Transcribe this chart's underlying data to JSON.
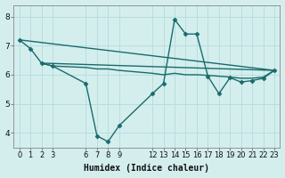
{
  "xlabel": "Humidex (Indice chaleur)",
  "bg_color": "#d4eeee",
  "line_color": "#1a6b6b",
  "grid_color": "#b8dede",
  "xticks": [
    0,
    1,
    2,
    3,
    6,
    7,
    8,
    9,
    12,
    13,
    14,
    15,
    16,
    17,
    18,
    19,
    20,
    21,
    22,
    23
  ],
  "yticks": [
    4,
    5,
    6,
    7,
    8
  ],
  "ylim": [
    3.5,
    8.4
  ],
  "xlim": [
    -0.5,
    23.5
  ],
  "series": [
    {
      "x": [
        0,
        23
      ],
      "y": [
        7.2,
        6.15
      ],
      "marker": null,
      "linewidth": 1.0
    },
    {
      "x": [
        2,
        23
      ],
      "y": [
        6.4,
        6.15
      ],
      "marker": null,
      "linewidth": 1.0
    },
    {
      "x": [
        2,
        3,
        6,
        7,
        8,
        9,
        12,
        13,
        14,
        15,
        16,
        17,
        18,
        19,
        20,
        21,
        22,
        23
      ],
      "y": [
        6.4,
        6.3,
        6.25,
        6.2,
        6.2,
        6.15,
        6.05,
        6.0,
        6.05,
        6.0,
        6.0,
        5.98,
        5.95,
        5.92,
        5.88,
        5.88,
        5.92,
        6.15
      ],
      "marker": null,
      "linewidth": 1.0
    },
    {
      "x": [
        0,
        1,
        2,
        3,
        6,
        7,
        8,
        9,
        12,
        13,
        14,
        15,
        16,
        17,
        18,
        19,
        20,
        21,
        22,
        23
      ],
      "y": [
        7.2,
        6.9,
        6.4,
        6.3,
        5.7,
        3.9,
        3.7,
        4.25,
        5.35,
        5.7,
        7.9,
        7.4,
        7.4,
        5.95,
        5.35,
        5.9,
        5.75,
        5.8,
        5.88,
        6.15
      ],
      "marker": "D",
      "linewidth": 1.0
    }
  ]
}
